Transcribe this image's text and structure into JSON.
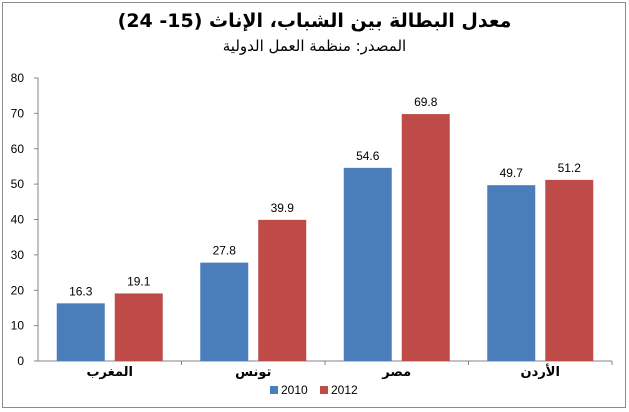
{
  "chart_data": {
    "type": "bar",
    "title": "معدل البطالة بين الشباب، الإناث (15- 24)",
    "subtitle": "المصدر: منظمة العمل الدولية",
    "categories": [
      "المغرب",
      "تونس",
      "مصر",
      "الأردن"
    ],
    "series": [
      {
        "name": "2010",
        "color": "#4a7ebb",
        "values": [
          16.3,
          27.8,
          54.6,
          49.7
        ]
      },
      {
        "name": "2012",
        "color": "#be4b48",
        "values": [
          19.1,
          39.9,
          69.8,
          51.2
        ]
      }
    ],
    "yticks": [
      "0",
      "10",
      "20",
      "30",
      "40",
      "50",
      "60",
      "70",
      "80"
    ],
    "ylim": [
      0,
      80
    ],
    "grid": false,
    "legend_position": "bottom-center",
    "xlabel": "",
    "ylabel": ""
  }
}
